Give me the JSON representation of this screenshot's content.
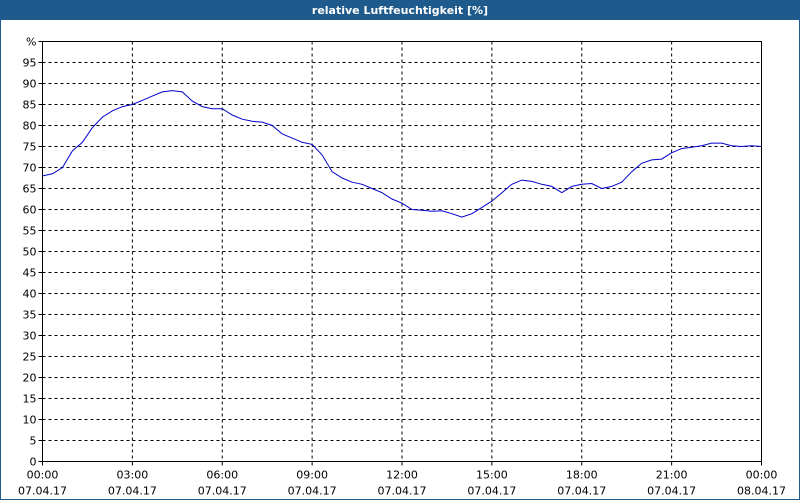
{
  "window": {
    "title": "relative Luftfeuchtigkeit [%]"
  },
  "chart_data": {
    "type": "line",
    "title": "relative Luftfeuchtigkeit [%]",
    "ylabel": "%",
    "xlabel": "",
    "ylim": [
      0,
      100
    ],
    "yticks": [
      0,
      5,
      10,
      15,
      20,
      25,
      30,
      35,
      40,
      45,
      50,
      55,
      60,
      65,
      70,
      75,
      80,
      85,
      90,
      95
    ],
    "xlim": [
      "2017-04-07T00:00",
      "2017-04-08T00:00"
    ],
    "xticks": [
      {
        "time": "00:00",
        "date": "07.04.17"
      },
      {
        "time": "03:00",
        "date": "07.04.17"
      },
      {
        "time": "06:00",
        "date": "07.04.17"
      },
      {
        "time": "09:00",
        "date": "07.04.17"
      },
      {
        "time": "12:00",
        "date": "07.04.17"
      },
      {
        "time": "15:00",
        "date": "07.04.17"
      },
      {
        "time": "18:00",
        "date": "07.04.17"
      },
      {
        "time": "21:00",
        "date": "07.04.17"
      },
      {
        "time": "00:00",
        "date": "08.04.17"
      }
    ],
    "grid": true,
    "line_color": "#0000cc",
    "series": [
      {
        "x": [
          "00:00",
          "00:20",
          "00:40",
          "01:00",
          "01:20",
          "01:40",
          "02:00",
          "02:20",
          "02:40",
          "03:00",
          "03:20",
          "03:40",
          "04:00",
          "04:20",
          "04:40",
          "05:00",
          "05:20",
          "05:40",
          "06:00",
          "06:20",
          "06:40",
          "07:00",
          "07:20",
          "07:40",
          "08:00",
          "08:20",
          "08:40",
          "09:00",
          "09:20",
          "09:40",
          "10:00",
          "10:20",
          "10:40",
          "11:00",
          "11:20",
          "11:40",
          "12:00",
          "12:20",
          "12:40",
          "13:00",
          "13:20",
          "13:40",
          "14:00",
          "14:20",
          "14:40",
          "15:00",
          "15:20",
          "15:40",
          "16:00",
          "16:20",
          "16:40",
          "17:00",
          "17:20",
          "17:40",
          "18:00",
          "18:20",
          "18:40",
          "19:00",
          "19:20",
          "19:40",
          "20:00",
          "20:20",
          "20:40",
          "21:00",
          "21:20",
          "21:40",
          "22:00",
          "22:20",
          "22:40",
          "23:00",
          "23:20",
          "23:40",
          "24:00"
        ],
        "y": [
          68,
          68.5,
          70,
          74,
          76,
          79.5,
          82,
          83.5,
          84.5,
          85,
          86,
          87,
          88,
          88.3,
          88,
          85.8,
          84.5,
          84,
          84,
          82.5,
          81.5,
          81,
          80.8,
          80,
          78,
          77,
          76,
          75.5,
          73,
          69,
          67.5,
          66.5,
          66,
          65,
          64,
          62.5,
          61.5,
          60,
          59.8,
          59.6,
          59.7,
          59,
          58.2,
          59,
          60.5,
          62,
          64,
          66,
          67,
          66.7,
          66,
          65.5,
          64,
          65.5,
          66,
          66.2,
          65,
          65.5,
          66.5,
          69,
          71,
          71.8,
          72,
          73.5,
          74.5,
          74.8,
          75.2,
          75.8,
          75.8,
          75.2,
          75,
          75.2,
          75
        ]
      }
    ]
  }
}
